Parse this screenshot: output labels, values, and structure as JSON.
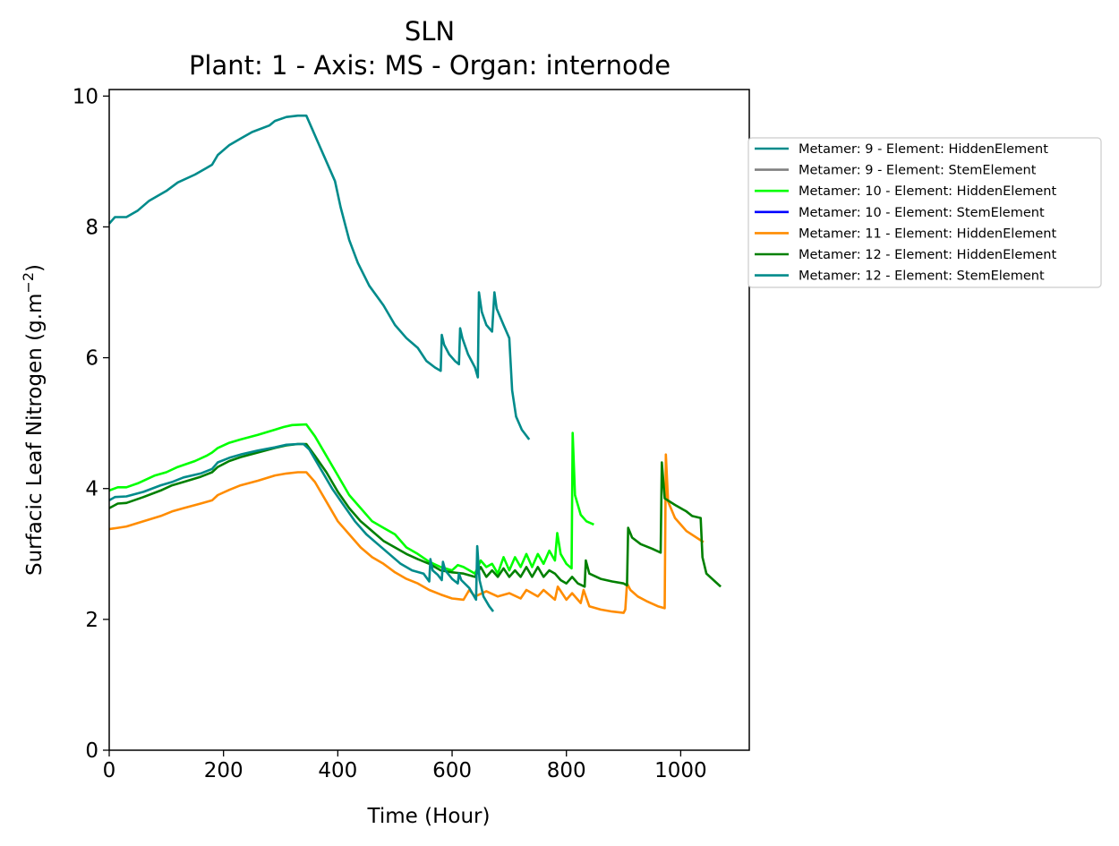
{
  "chart_data": {
    "type": "line",
    "title": "SLN",
    "subtitle": "Plant: 1 - Axis: MS - Organ: internode",
    "xlabel": "Time (Hour)",
    "ylabel": "Surfacic Leaf Nitrogen (g.m",
    "ylabel_sup": "−2",
    "ylabel_suffix": ")",
    "xlim": [
      0,
      1120
    ],
    "ylim": [
      0,
      10.1
    ],
    "xticks": [
      0,
      200,
      400,
      600,
      800,
      1000
    ],
    "yticks": [
      0,
      2,
      4,
      6,
      8,
      10
    ],
    "grid": false,
    "legend_placement": "outside-right",
    "series": [
      {
        "name": "Metamer: 9 - Element: HiddenElement",
        "color": "#008b8b",
        "points": [
          [
            0,
            8.05
          ],
          [
            10,
            8.15
          ],
          [
            30,
            8.15
          ],
          [
            50,
            8.25
          ],
          [
            70,
            8.4
          ],
          [
            100,
            8.55
          ],
          [
            120,
            8.68
          ],
          [
            150,
            8.8
          ],
          [
            170,
            8.9
          ],
          [
            180,
            8.95
          ],
          [
            190,
            9.1
          ],
          [
            210,
            9.25
          ],
          [
            230,
            9.35
          ],
          [
            250,
            9.45
          ],
          [
            280,
            9.55
          ],
          [
            290,
            9.62
          ],
          [
            310,
            9.68
          ],
          [
            330,
            9.7
          ],
          [
            345,
            9.7
          ],
          [
            355,
            9.5
          ],
          [
            365,
            9.3
          ],
          [
            385,
            8.9
          ],
          [
            395,
            8.7
          ],
          [
            405,
            8.3
          ],
          [
            420,
            7.8
          ],
          [
            435,
            7.45
          ],
          [
            455,
            7.1
          ],
          [
            480,
            6.8
          ],
          [
            500,
            6.5
          ],
          [
            520,
            6.3
          ],
          [
            540,
            6.15
          ],
          [
            555,
            5.95
          ],
          [
            570,
            5.85
          ],
          [
            580,
            5.8
          ],
          [
            582,
            6.35
          ],
          [
            586,
            6.2
          ],
          [
            595,
            6.05
          ],
          [
            605,
            5.95
          ],
          [
            612,
            5.9
          ],
          [
            614,
            6.45
          ],
          [
            618,
            6.3
          ],
          [
            628,
            6.05
          ],
          [
            640,
            5.85
          ],
          [
            645,
            5.7
          ],
          [
            647,
            7.0
          ],
          [
            652,
            6.7
          ],
          [
            660,
            6.5
          ],
          [
            670,
            6.4
          ],
          [
            674,
            7.0
          ],
          [
            678,
            6.75
          ],
          [
            690,
            6.5
          ],
          [
            700,
            6.3
          ],
          [
            705,
            5.5
          ],
          [
            712,
            5.1
          ],
          [
            722,
            4.9
          ],
          [
            735,
            4.75
          ]
        ]
      },
      {
        "name": "Metamer: 9 - Element: StemElement",
        "color": "#808080",
        "points": []
      },
      {
        "name": "Metamer: 10 - Element: HiddenElement",
        "color": "#00ff00",
        "points": [
          [
            0,
            3.97
          ],
          [
            15,
            4.02
          ],
          [
            30,
            4.02
          ],
          [
            50,
            4.08
          ],
          [
            80,
            4.2
          ],
          [
            100,
            4.25
          ],
          [
            120,
            4.33
          ],
          [
            150,
            4.42
          ],
          [
            170,
            4.5
          ],
          [
            180,
            4.55
          ],
          [
            190,
            4.62
          ],
          [
            210,
            4.7
          ],
          [
            230,
            4.75
          ],
          [
            260,
            4.82
          ],
          [
            290,
            4.9
          ],
          [
            305,
            4.94
          ],
          [
            320,
            4.97
          ],
          [
            345,
            4.98
          ],
          [
            360,
            4.8
          ],
          [
            380,
            4.5
          ],
          [
            400,
            4.2
          ],
          [
            420,
            3.9
          ],
          [
            440,
            3.7
          ],
          [
            460,
            3.5
          ],
          [
            480,
            3.4
          ],
          [
            500,
            3.3
          ],
          [
            520,
            3.1
          ],
          [
            540,
            3.0
          ],
          [
            560,
            2.88
          ],
          [
            580,
            2.8
          ],
          [
            600,
            2.75
          ],
          [
            610,
            2.83
          ],
          [
            620,
            2.8
          ],
          [
            640,
            2.7
          ],
          [
            650,
            2.9
          ],
          [
            660,
            2.8
          ],
          [
            670,
            2.85
          ],
          [
            680,
            2.7
          ],
          [
            690,
            2.95
          ],
          [
            700,
            2.75
          ],
          [
            710,
            2.95
          ],
          [
            720,
            2.8
          ],
          [
            730,
            3.0
          ],
          [
            740,
            2.8
          ],
          [
            750,
            3.0
          ],
          [
            760,
            2.85
          ],
          [
            770,
            3.05
          ],
          [
            780,
            2.9
          ],
          [
            784,
            3.32
          ],
          [
            790,
            3.0
          ],
          [
            800,
            2.85
          ],
          [
            809,
            2.78
          ],
          [
            811,
            4.85
          ],
          [
            815,
            3.9
          ],
          [
            825,
            3.6
          ],
          [
            835,
            3.5
          ],
          [
            848,
            3.45
          ]
        ]
      },
      {
        "name": "Metamer: 10 - Element: StemElement",
        "color": "#0000ff",
        "points": []
      },
      {
        "name": "Metamer: 11 - Element: HiddenElement",
        "color": "#ff8c00",
        "points": [
          [
            0,
            3.38
          ],
          [
            15,
            3.4
          ],
          [
            30,
            3.42
          ],
          [
            60,
            3.5
          ],
          [
            90,
            3.58
          ],
          [
            110,
            3.65
          ],
          [
            130,
            3.7
          ],
          [
            160,
            3.77
          ],
          [
            180,
            3.82
          ],
          [
            190,
            3.9
          ],
          [
            210,
            3.98
          ],
          [
            230,
            4.05
          ],
          [
            260,
            4.12
          ],
          [
            290,
            4.2
          ],
          [
            310,
            4.23
          ],
          [
            330,
            4.25
          ],
          [
            345,
            4.25
          ],
          [
            360,
            4.1
          ],
          [
            380,
            3.8
          ],
          [
            400,
            3.5
          ],
          [
            420,
            3.3
          ],
          [
            440,
            3.1
          ],
          [
            460,
            2.95
          ],
          [
            480,
            2.85
          ],
          [
            500,
            2.72
          ],
          [
            520,
            2.62
          ],
          [
            540,
            2.55
          ],
          [
            560,
            2.45
          ],
          [
            580,
            2.38
          ],
          [
            600,
            2.32
          ],
          [
            620,
            2.3
          ],
          [
            630,
            2.45
          ],
          [
            640,
            2.35
          ],
          [
            660,
            2.43
          ],
          [
            680,
            2.35
          ],
          [
            700,
            2.4
          ],
          [
            720,
            2.32
          ],
          [
            730,
            2.45
          ],
          [
            750,
            2.35
          ],
          [
            760,
            2.45
          ],
          [
            780,
            2.3
          ],
          [
            785,
            2.5
          ],
          [
            800,
            2.3
          ],
          [
            810,
            2.4
          ],
          [
            825,
            2.25
          ],
          [
            830,
            2.45
          ],
          [
            840,
            2.2
          ],
          [
            860,
            2.15
          ],
          [
            880,
            2.12
          ],
          [
            900,
            2.1
          ],
          [
            903,
            2.15
          ],
          [
            906,
            2.55
          ],
          [
            912,
            2.45
          ],
          [
            925,
            2.35
          ],
          [
            940,
            2.28
          ],
          [
            960,
            2.2
          ],
          [
            972,
            2.17
          ],
          [
            974,
            4.52
          ],
          [
            978,
            3.8
          ],
          [
            990,
            3.55
          ],
          [
            1010,
            3.35
          ],
          [
            1040,
            3.18
          ]
        ]
      },
      {
        "name": "Metamer: 12 - Element: HiddenElement",
        "color": "#008000",
        "points": [
          [
            0,
            3.7
          ],
          [
            15,
            3.77
          ],
          [
            30,
            3.78
          ],
          [
            60,
            3.87
          ],
          [
            90,
            3.97
          ],
          [
            110,
            4.05
          ],
          [
            130,
            4.1
          ],
          [
            160,
            4.18
          ],
          [
            180,
            4.25
          ],
          [
            190,
            4.33
          ],
          [
            210,
            4.42
          ],
          [
            230,
            4.48
          ],
          [
            260,
            4.55
          ],
          [
            290,
            4.62
          ],
          [
            310,
            4.66
          ],
          [
            330,
            4.68
          ],
          [
            345,
            4.68
          ],
          [
            360,
            4.5
          ],
          [
            380,
            4.25
          ],
          [
            400,
            3.95
          ],
          [
            420,
            3.7
          ],
          [
            440,
            3.5
          ],
          [
            460,
            3.35
          ],
          [
            480,
            3.2
          ],
          [
            500,
            3.1
          ],
          [
            520,
            3.0
          ],
          [
            540,
            2.92
          ],
          [
            560,
            2.85
          ],
          [
            580,
            2.75
          ],
          [
            600,
            2.72
          ],
          [
            620,
            2.7
          ],
          [
            640,
            2.65
          ],
          [
            650,
            2.8
          ],
          [
            660,
            2.65
          ],
          [
            670,
            2.75
          ],
          [
            680,
            2.65
          ],
          [
            690,
            2.78
          ],
          [
            700,
            2.65
          ],
          [
            710,
            2.75
          ],
          [
            720,
            2.65
          ],
          [
            730,
            2.8
          ],
          [
            740,
            2.65
          ],
          [
            750,
            2.8
          ],
          [
            760,
            2.65
          ],
          [
            770,
            2.75
          ],
          [
            780,
            2.7
          ],
          [
            790,
            2.6
          ],
          [
            800,
            2.55
          ],
          [
            810,
            2.65
          ],
          [
            820,
            2.55
          ],
          [
            832,
            2.5
          ],
          [
            834,
            2.9
          ],
          [
            840,
            2.7
          ],
          [
            860,
            2.62
          ],
          [
            880,
            2.58
          ],
          [
            900,
            2.55
          ],
          [
            906,
            2.52
          ],
          [
            908,
            3.4
          ],
          [
            915,
            3.25
          ],
          [
            930,
            3.15
          ],
          [
            950,
            3.08
          ],
          [
            965,
            3.02
          ],
          [
            967,
            4.4
          ],
          [
            972,
            3.85
          ],
          [
            990,
            3.75
          ],
          [
            1010,
            3.65
          ],
          [
            1020,
            3.58
          ],
          [
            1035,
            3.55
          ],
          [
            1038,
            2.95
          ],
          [
            1045,
            2.7
          ],
          [
            1060,
            2.58
          ],
          [
            1070,
            2.5
          ]
        ]
      },
      {
        "name": "Metamer: 12 - Element: StemElement",
        "color": "#008b8b",
        "points": [
          [
            0,
            3.82
          ],
          [
            10,
            3.87
          ],
          [
            30,
            3.88
          ],
          [
            60,
            3.95
          ],
          [
            90,
            4.05
          ],
          [
            110,
            4.1
          ],
          [
            130,
            4.17
          ],
          [
            160,
            4.23
          ],
          [
            180,
            4.3
          ],
          [
            190,
            4.4
          ],
          [
            210,
            4.47
          ],
          [
            230,
            4.52
          ],
          [
            260,
            4.58
          ],
          [
            290,
            4.63
          ],
          [
            310,
            4.67
          ],
          [
            330,
            4.68
          ],
          [
            340,
            4.68
          ],
          [
            350,
            4.6
          ],
          [
            370,
            4.3
          ],
          [
            390,
            4.0
          ],
          [
            410,
            3.75
          ],
          [
            430,
            3.5
          ],
          [
            450,
            3.3
          ],
          [
            470,
            3.15
          ],
          [
            490,
            3.0
          ],
          [
            510,
            2.85
          ],
          [
            530,
            2.75
          ],
          [
            550,
            2.7
          ],
          [
            560,
            2.58
          ],
          [
            562,
            2.92
          ],
          [
            566,
            2.75
          ],
          [
            575,
            2.68
          ],
          [
            582,
            2.6
          ],
          [
            584,
            2.88
          ],
          [
            588,
            2.75
          ],
          [
            600,
            2.62
          ],
          [
            610,
            2.55
          ],
          [
            612,
            2.7
          ],
          [
            616,
            2.6
          ],
          [
            630,
            2.48
          ],
          [
            642,
            2.3
          ],
          [
            644,
            3.12
          ],
          [
            648,
            2.6
          ],
          [
            655,
            2.35
          ],
          [
            665,
            2.2
          ],
          [
            672,
            2.12
          ]
        ]
      }
    ]
  }
}
